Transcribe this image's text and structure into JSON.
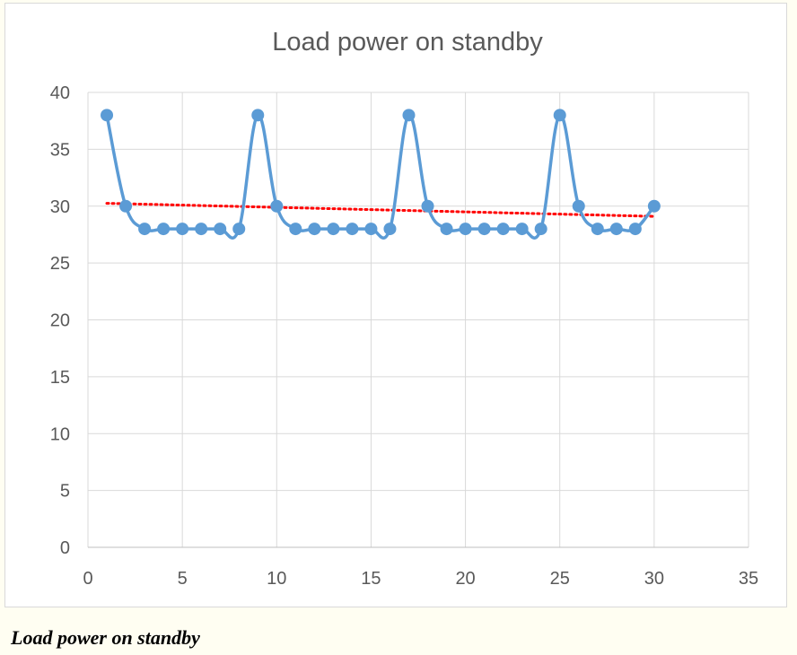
{
  "caption": "Load power on standby",
  "chart_data": {
    "type": "scatter",
    "title": "Load power on standby",
    "xlabel": "",
    "ylabel": "",
    "xlim": [
      0,
      35
    ],
    "ylim": [
      0,
      40
    ],
    "xticks": [
      0,
      5,
      10,
      15,
      20,
      25,
      30,
      35
    ],
    "yticks": [
      0,
      5,
      10,
      15,
      20,
      25,
      30,
      35,
      40
    ],
    "grid": true,
    "legend": "none",
    "series": [
      {
        "style": "smooth line with markers",
        "color": "#5b9bd5",
        "x": [
          1,
          2,
          3,
          4,
          5,
          6,
          7,
          8,
          9,
          10,
          11,
          12,
          13,
          14,
          15,
          16,
          17,
          18,
          19,
          20,
          21,
          22,
          23,
          24,
          25,
          26,
          27,
          28,
          29,
          30
        ],
        "y": [
          38,
          30,
          28,
          28,
          28,
          28,
          28,
          28,
          38,
          30,
          28,
          28,
          28,
          28,
          28,
          28,
          38,
          30,
          28,
          28,
          28,
          28,
          28,
          28,
          38,
          30,
          28,
          28,
          28,
          30
        ]
      }
    ],
    "trendline": {
      "style": "dotted",
      "color": "#ff0000",
      "x": [
        1,
        30
      ],
      "y": [
        30.25,
        29.1
      ]
    }
  }
}
